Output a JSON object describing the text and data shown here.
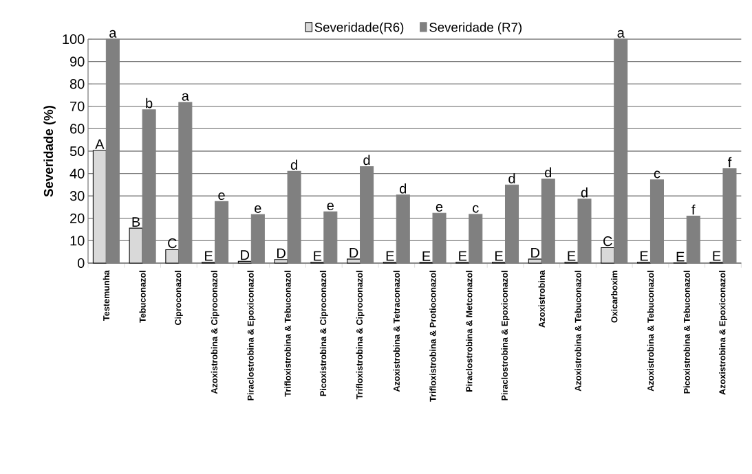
{
  "chart_data": {
    "type": "bar",
    "ylabel": "Severidade (%)",
    "categories": [
      "Testemunha",
      "Tebuconazol",
      "Ciproconazol",
      "Azoxistrobina & Ciproconazol",
      "Piraclostrobina & Epoxiconazol",
      "Trifloxistrobina & Tebuconazol",
      "Picoxistrobina & Ciproconazol",
      "Trifloxistrobina & Ciproconazol",
      "Azoxistrobina & Tetraconazol",
      "Trifloxistrobina & Protioconazol",
      "Piraclostrobina & Metconazol",
      "Piraclostrobina & Epoxiconazol",
      "Azoxistrobina",
      "Azoxistrobina & Tebuconazol",
      "Oxicarboxim",
      "Azoxistrobina & Tebuconazol",
      "Picoxistrobina & Tebuconazol",
      "Azoxistrobina & Epoxiconazol"
    ],
    "series": [
      {
        "name": "Severidade(R6)",
        "color": "#d9d9d9",
        "values": [
          50.3,
          15.6,
          6.0,
          0.4,
          0.8,
          1.6,
          0.4,
          1.8,
          0.4,
          0.3,
          0.4,
          0.4,
          1.8,
          0.4,
          6.9,
          0.4,
          0.1,
          0.4
        ],
        "value_labels": [
          "A",
          "B",
          "C",
          "E",
          "D",
          "D",
          "E",
          "D",
          "E",
          "E",
          "E",
          "E",
          "D",
          "E",
          "C",
          "E",
          "E",
          "E"
        ]
      },
      {
        "name": "Severidade (R7)",
        "color": "#808080",
        "values": [
          100,
          68.5,
          71.8,
          27.5,
          21.7,
          41.0,
          22.9,
          43.1,
          30.4,
          22.3,
          21.8,
          34.9,
          37.6,
          28.6,
          100,
          37.2,
          21.0,
          42.2
        ],
        "value_labels": [
          "a",
          "b",
          "a",
          "e",
          "e",
          "d",
          "e",
          "d",
          "d",
          "e",
          "c",
          "d",
          "d",
          "d",
          "a",
          "c",
          "f",
          "f"
        ]
      }
    ],
    "ylim": [
      0,
      100
    ],
    "yticks": [
      0,
      10,
      20,
      30,
      40,
      50,
      60,
      70,
      80,
      90,
      100
    ],
    "grid": "y",
    "legend": "top"
  }
}
